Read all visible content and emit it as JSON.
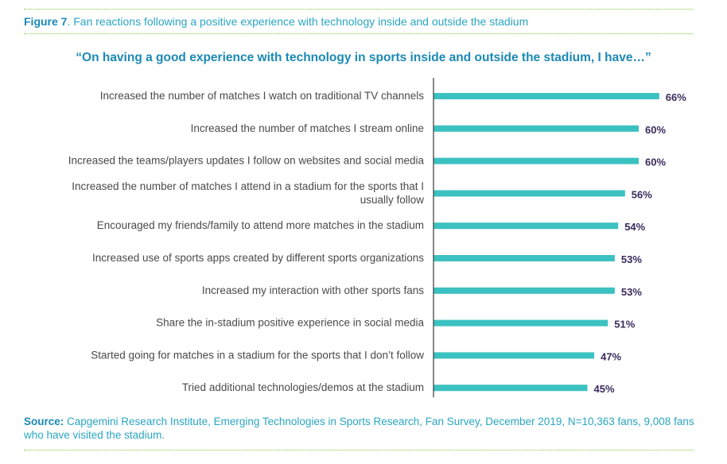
{
  "figure": {
    "label": "Figure 7",
    "caption": ". Fan reactions following a positive experience with technology inside and outside the stadium"
  },
  "source": {
    "label": "Source:",
    "text": " Capgemini Research Institute, Emerging Technologies in Sports Research, Fan Survey, December 2019, N=10,363 fans, 9,008 fans who have visited the stadium."
  },
  "colors": {
    "bar": "#3cc1c1",
    "axis": "#3a3a3a",
    "value_label": "#3b2a5c",
    "divider": "#8cc63f"
  },
  "chart_data": {
    "type": "bar",
    "orientation": "horizontal",
    "title": "“On having a good experience with technology in sports inside and outside the stadium, I have…”",
    "xlabel": "",
    "ylabel": "",
    "grid": false,
    "value_suffix": "%",
    "categories": [
      [
        "Increased the number of matches I watch on traditional TV channels"
      ],
      [
        "Increased the number of matches I stream online"
      ],
      [
        "Increased the teams/players updates I follow on websites and social media"
      ],
      [
        "Increased the number of matches I attend in a stadium for the sports that I",
        "usually follow"
      ],
      [
        "Encouraged my friends/family to attend more matches in the stadium"
      ],
      [
        "Increased use of sports apps created by different sports organizations"
      ],
      [
        "Increased my interaction with other sports fans"
      ],
      [
        "Share the in-stadium positive experience in social media"
      ],
      [
        "Started going for matches in a stadium for the sports that I don’t follow"
      ],
      [
        "Tried  additional technologies/demos at the stadium"
      ]
    ],
    "values": [
      66,
      60,
      60,
      56,
      54,
      53,
      53,
      51,
      47,
      45
    ]
  }
}
